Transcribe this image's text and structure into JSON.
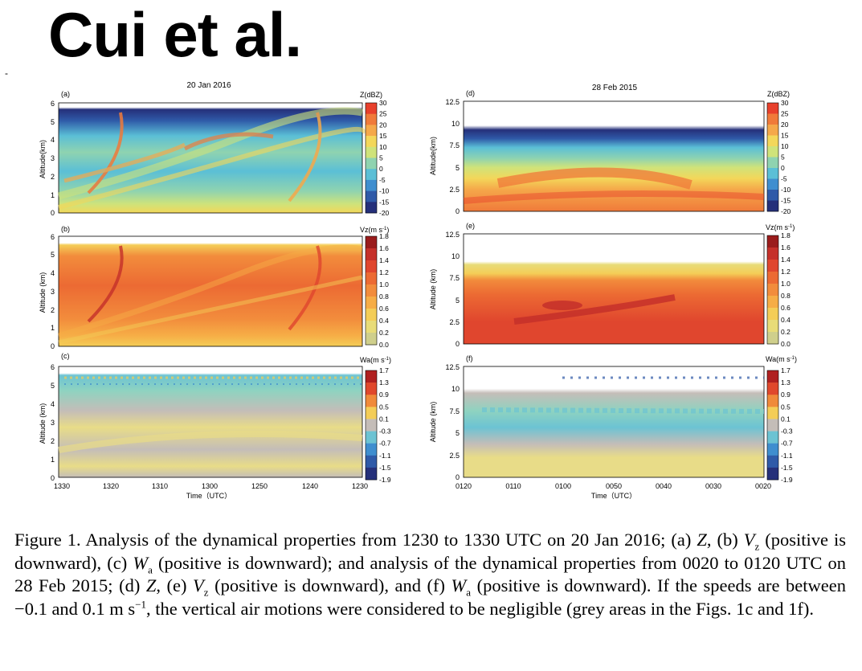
{
  "slide": {
    "title": "Cui et al.",
    "dash": "-"
  },
  "columns": [
    {
      "date": "20 Jan 2016",
      "xticks": [
        "1330",
        "1320",
        "1310",
        "1300",
        "1250",
        "1240",
        "1230"
      ],
      "xlabel": "Time（UTC）",
      "yticks": [
        "0",
        "1",
        "2",
        "3",
        "4",
        "5",
        "6"
      ]
    },
    {
      "date": "28 Feb 2015",
      "xticks": [
        "0120",
        "0110",
        "0100",
        "0050",
        "0040",
        "0030",
        "0020"
      ],
      "xlabel": "Time（UTC）",
      "yticks": [
        "0",
        "2.5",
        "5",
        "7.5",
        "10",
        "12.5"
      ]
    }
  ],
  "panels": [
    {
      "id": "a",
      "letter": "(a)",
      "ylabel": "Altitude(km)",
      "cbar": "Z"
    },
    {
      "id": "b",
      "letter": "(b)",
      "ylabel": "Altitude (km)",
      "cbar": "Vz"
    },
    {
      "id": "c",
      "letter": "(c)",
      "ylabel": "Altitude (km)",
      "cbar": "Wa"
    },
    {
      "id": "d",
      "letter": "(d)",
      "ylabel": "Altitude(km)",
      "cbar": "Z"
    },
    {
      "id": "e",
      "letter": "(e)",
      "ylabel": "Altitude (km)",
      "cbar": "Vz"
    },
    {
      "id": "f",
      "letter": "(f)",
      "ylabel": "Altitude (km)",
      "cbar": "Wa"
    }
  ],
  "colorbars": {
    "Z": {
      "label": "Z(dBZ)",
      "ticks": [
        "30",
        "25",
        "20",
        "15",
        "10",
        "5",
        "0",
        "-5",
        "-10",
        "-15",
        "-20"
      ],
      "colors": [
        "#e8402c",
        "#f07a3a",
        "#f5a84a",
        "#f3d75a",
        "#cfe37a",
        "#8fd3b0",
        "#5bbfd6",
        "#3f8ecf",
        "#2f5aa8",
        "#25307a"
      ]
    },
    "Vz": {
      "label_main": "Vz(m s",
      "label_sup": "-1",
      "label_end": ")",
      "ticks": [
        "1.8",
        "1.6",
        "1.4",
        "1.2",
        "1.0",
        "0.8",
        "0.6",
        "0.4",
        "0.2",
        "0.0"
      ],
      "colors": [
        "#9a1c1c",
        "#c5302a",
        "#e0462e",
        "#ec6a33",
        "#f28c3c",
        "#f6ad46",
        "#f4cd57",
        "#e8dc78",
        "#cfcf8c"
      ]
    },
    "Wa": {
      "label_main": "Wa(m s",
      "label_sup": "-1",
      "label_end": ")",
      "ticks": [
        "1.7",
        "1.3",
        "0.9",
        "0.5",
        "0.1",
        "-0.3",
        "-0.7",
        "-1.1",
        "-1.5",
        "-1.9"
      ],
      "colors": [
        "#b02020",
        "#e0482c",
        "#f08a3a",
        "#f4cd57",
        "#c4bdb8",
        "#6cc3d3",
        "#3f8ecf",
        "#2f5aa8",
        "#25307a"
      ]
    }
  },
  "caption": {
    "p1": "Figure 1. Analysis of the dynamical properties from 1230 to 1330 UTC on 20 Jan 2016; (a) ",
    "Z1": "Z",
    "p2": ", (b) ",
    "V1": "V",
    "V1sub": "z",
    "p3": " (positive is downward), (c) ",
    "W1": "W",
    "W1sub": "a",
    "p4": " (positive is downward); and analysis of the dynamical properties from 0020 to 0120 UTC on 28 Feb 2015; (d) ",
    "Z2": "Z",
    "p5": ", (e) ",
    "V2": "V",
    "V2sub": "z",
    "p6": " (positive is downward), and (f) ",
    "W2": "W",
    "W2sub": "a",
    "p7": " (positive is downward). If the speeds are between −0.1 and 0.1 m s",
    "sup": "−1",
    "p8": ", the vertical air motions were considered to be negligible (grey areas in the Figs. 1c and 1f)."
  }
}
